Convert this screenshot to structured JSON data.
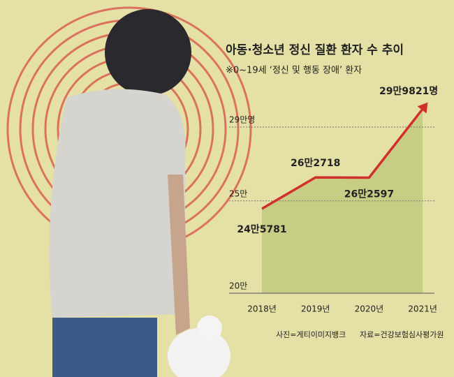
{
  "chart_data": {
    "type": "area-line",
    "title": "아동·청소년 정신 질환 환자 수 추이",
    "subtitle": "※0~19세 ‘정신 및 행동 장애’ 환자",
    "categories": [
      "2018년",
      "2019년",
      "2020년",
      "2021년"
    ],
    "values": [
      245781,
      262718,
      262597,
      299821
    ],
    "value_labels": [
      "24만5781",
      "26만2718",
      "26만2597",
      "29만9821명"
    ],
    "color": "#d0302b",
    "area_color": "#c8cd86",
    "ylim": [
      200000,
      300000
    ],
    "yticks": [
      {
        "value": 200000,
        "label": "20만"
      },
      {
        "value": 250000,
        "label": "25만"
      },
      {
        "value": 290000,
        "label": "29만명"
      }
    ],
    "grid": true,
    "photo_credit": "사진=게티이미지뱅크",
    "source": "자료=건강보험심사평가원"
  }
}
